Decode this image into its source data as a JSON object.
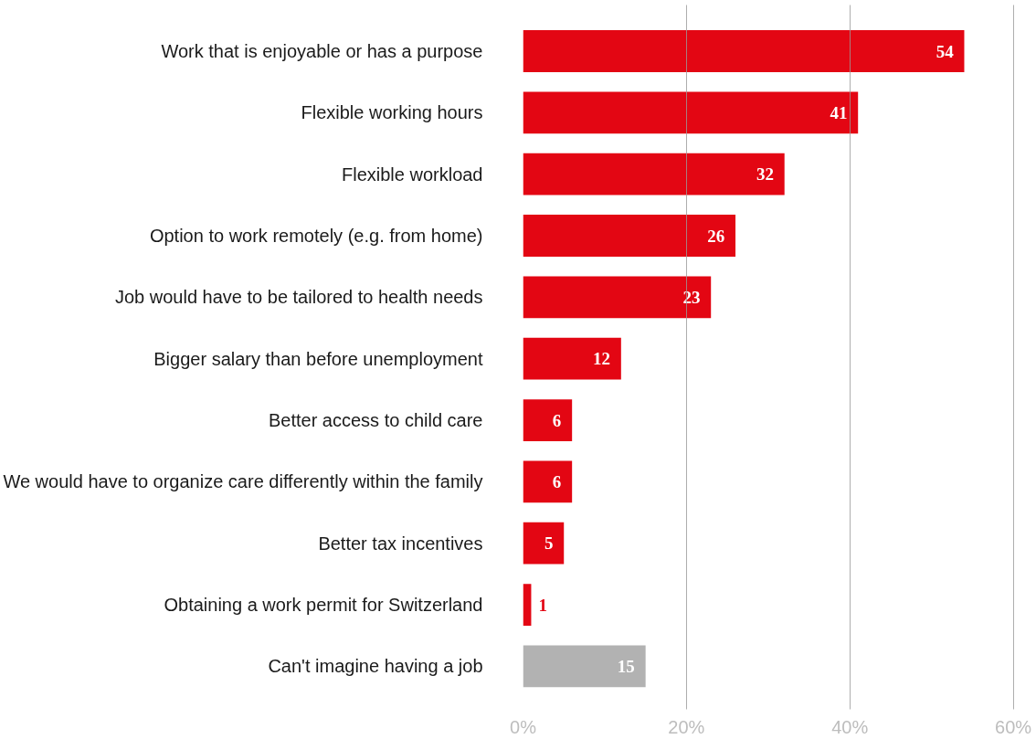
{
  "chart_data": {
    "type": "bar",
    "orientation": "horizontal",
    "categories": [
      "Work that is enjoyable or has a purpose",
      "Flexible working hours",
      "Flexible workload",
      "Option to work remotely (e.g. from home)",
      "Job would have to be tailored to health needs",
      "Bigger salary than before unemployment",
      "Better access to child care",
      "We would have to organize care differently within the family",
      "Better tax incentives",
      "Obtaining a work permit for Switzerland",
      "Can't imagine having a job"
    ],
    "values": [
      54,
      41,
      32,
      26,
      23,
      12,
      6,
      6,
      5,
      1,
      15
    ],
    "colors": [
      "#e30613",
      "#e30613",
      "#e30613",
      "#e30613",
      "#e30613",
      "#e30613",
      "#e30613",
      "#e30613",
      "#e30613",
      "#e30613",
      "#b2b2b2"
    ],
    "xlim": [
      0,
      60
    ],
    "xticks": [
      {
        "value": 0,
        "label": "0%"
      },
      {
        "value": 20,
        "label": "20%"
      },
      {
        "value": 40,
        "label": "40%"
      },
      {
        "value": 60,
        "label": "60%"
      }
    ],
    "grid": "x",
    "data_labels": true
  }
}
